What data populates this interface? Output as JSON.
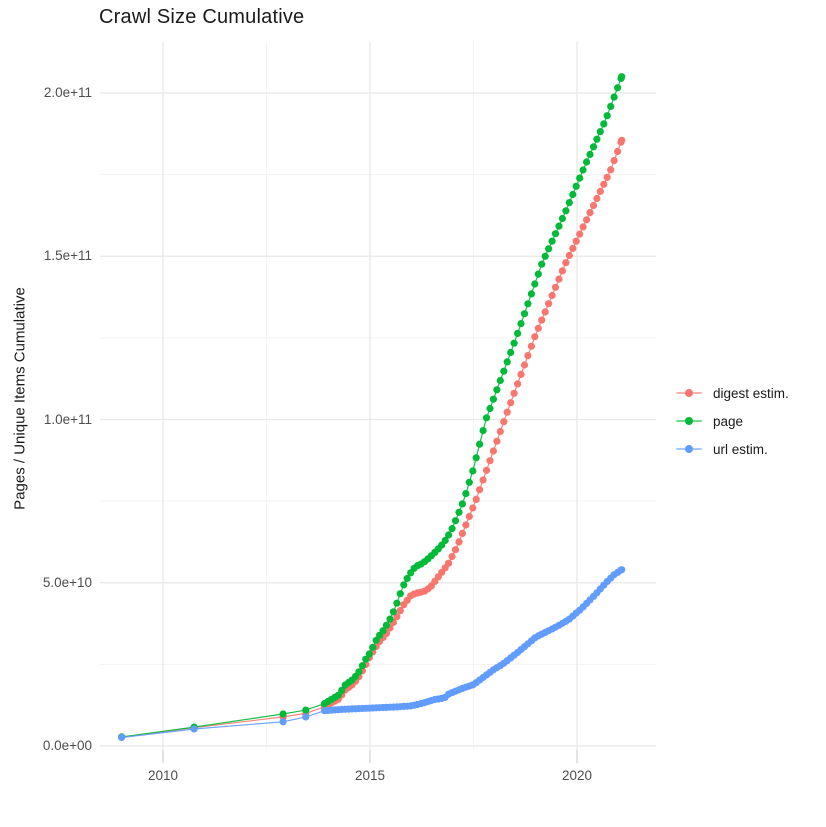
{
  "title": "Crawl Size Cumulative",
  "axes": {
    "y_title": "Pages / Unique Items Cumulative",
    "y_ticks": [
      {
        "label": "0.0e+00",
        "value": 0
      },
      {
        "label": "5.0e+10",
        "value": 50000000000.0
      },
      {
        "label": "1.0e+11",
        "value": 100000000000.0
      },
      {
        "label": "1.5e+11",
        "value": 150000000000.0
      },
      {
        "label": "2.0e+11",
        "value": 200000000000.0
      }
    ],
    "x_ticks": [
      {
        "label": "2010",
        "year": 2010
      },
      {
        "label": "2015",
        "year": 2015
      },
      {
        "label": "2020",
        "year": 2020
      }
    ],
    "y_minor_gridlines": [
      25000000000.0,
      75000000000.0,
      125000000000.0,
      175000000000.0
    ],
    "x_minor_gridlines": [
      2012.5,
      2017.5
    ]
  },
  "legend": {
    "position": "right",
    "items": [
      {
        "label": "digest estim.",
        "color": "#F8766D"
      },
      {
        "label": "page",
        "color": "#00BA38"
      },
      {
        "label": "url estim.",
        "color": "#619CFF"
      }
    ]
  },
  "style": {
    "grid_major_color": "#e8e8e8",
    "grid_minor_color": "#f3f3f3",
    "axis_tick_color": "#d9d9d9",
    "tick_text_color": "#4d4d4d",
    "title_color": "#1a1a1a",
    "background": "#ffffff"
  },
  "chart_data": {
    "type": "line",
    "title": "Crawl Size Cumulative",
    "xlabel": "",
    "ylabel": "Pages / Unique Items Cumulative",
    "x_unit": "year",
    "y_unit": "pages / unique items (cumulative)",
    "xlim": [
      2008.5,
      2021.9
    ],
    "ylim": [
      0,
      215000000000.0
    ],
    "grid": true,
    "legend_position": "right",
    "marker": "point",
    "point_cadence_years": 0.0833,
    "dense_points_from_year": 2013.9,
    "series": [
      {
        "name": "digest estim.",
        "color": "#F8766D",
        "points": [
          [
            2009.0,
            2700000000.0
          ],
          [
            2010.75,
            5600000000.0
          ],
          [
            2012.9,
            8900000000.0
          ],
          [
            2013.45,
            10000000000.0
          ],
          [
            2013.9,
            12000000000.0
          ],
          [
            2014.1,
            13400000000.0
          ],
          [
            2014.25,
            14400000000.0
          ],
          [
            2014.4,
            17200000000.0
          ],
          [
            2014.6,
            19000000000.0
          ],
          [
            2014.75,
            21500000000.0
          ],
          [
            2014.9,
            25000000000.0
          ],
          [
            2015.0,
            27500000000.0
          ],
          [
            2015.2,
            31500000000.0
          ],
          [
            2015.4,
            34500000000.0
          ],
          [
            2015.6,
            38500000000.0
          ],
          [
            2015.8,
            43000000000.0
          ],
          [
            2016.0,
            46300000000.0
          ],
          [
            2016.15,
            46900000000.0
          ],
          [
            2016.3,
            47300000000.0
          ],
          [
            2016.45,
            48500000000.0
          ],
          [
            2016.6,
            51000000000.0
          ],
          [
            2016.75,
            53500000000.0
          ],
          [
            2016.9,
            56000000000.0
          ],
          [
            2017.1,
            61000000000.0
          ],
          [
            2017.55,
            75000000000.0
          ],
          [
            2018.0,
            91000000000.0
          ],
          [
            2018.25,
            100000000000.0
          ],
          [
            2019.0,
            126000000000.0
          ],
          [
            2019.73,
            148000000000.0
          ],
          [
            2020.3,
            163000000000.0
          ],
          [
            2020.8,
            176000000000.0
          ],
          [
            2021.08,
            185500000000.0
          ]
        ]
      },
      {
        "name": "page",
        "color": "#00BA38",
        "points": [
          [
            2009.0,
            2800000000.0
          ],
          [
            2010.75,
            5800000000.0
          ],
          [
            2012.9,
            9800000000.0
          ],
          [
            2013.45,
            11000000000.0
          ],
          [
            2013.9,
            13000000000.0
          ],
          [
            2014.1,
            14500000000.0
          ],
          [
            2014.25,
            15700000000.0
          ],
          [
            2014.4,
            18700000000.0
          ],
          [
            2014.6,
            20500000000.0
          ],
          [
            2014.75,
            23000000000.0
          ],
          [
            2014.9,
            26600000000.0
          ],
          [
            2015.0,
            28500000000.0
          ],
          [
            2015.17,
            32900000000.0
          ],
          [
            2015.3,
            35000000000.0
          ],
          [
            2015.45,
            38000000000.0
          ],
          [
            2015.6,
            42000000000.0
          ],
          [
            2015.8,
            49000000000.0
          ],
          [
            2015.95,
            52500000000.0
          ],
          [
            2016.1,
            55000000000.0
          ],
          [
            2016.25,
            55800000000.0
          ],
          [
            2016.4,
            57300000000.0
          ],
          [
            2016.55,
            59100000000.0
          ],
          [
            2016.7,
            61000000000.0
          ],
          [
            2016.85,
            63500000000.0
          ],
          [
            2017.0,
            67000000000.0
          ],
          [
            2017.26,
            75000000000.0
          ],
          [
            2017.5,
            85000000000.0
          ],
          [
            2017.8,
            100000000000.0
          ],
          [
            2018.5,
            124000000000.0
          ],
          [
            2019.16,
            148000000000.0
          ],
          [
            2019.7,
            163000000000.0
          ],
          [
            2020.2,
            178000000000.0
          ],
          [
            2020.7,
            192000000000.0
          ],
          [
            2021.08,
            205000000000.0
          ]
        ]
      },
      {
        "name": "url estim.",
        "color": "#619CFF",
        "points": [
          [
            2009.0,
            2600000000.0
          ],
          [
            2010.75,
            5200000000.0
          ],
          [
            2012.9,
            7400000000.0
          ],
          [
            2013.45,
            8900000000.0
          ],
          [
            2013.9,
            10800000000.0
          ],
          [
            2014.3,
            11200000000.0
          ],
          [
            2015.0,
            11600000000.0
          ],
          [
            2015.7,
            12000000000.0
          ],
          [
            2016.0,
            12300000000.0
          ],
          [
            2016.3,
            13200000000.0
          ],
          [
            2016.55,
            14200000000.0
          ],
          [
            2016.8,
            14700000000.0
          ],
          [
            2016.88,
            15800000000.0
          ],
          [
            2017.2,
            17500000000.0
          ],
          [
            2017.5,
            18800000000.0
          ],
          [
            2018.0,
            23500000000.0
          ],
          [
            2018.2,
            25000000000.0
          ],
          [
            2018.6,
            29000000000.0
          ],
          [
            2019.0,
            33300000000.0
          ],
          [
            2019.5,
            36500000000.0
          ],
          [
            2019.8,
            38700000000.0
          ],
          [
            2020.1,
            42000000000.0
          ],
          [
            2020.45,
            46500000000.0
          ],
          [
            2020.7,
            50000000000.0
          ],
          [
            2020.9,
            52500000000.0
          ],
          [
            2021.08,
            54000000000.0
          ]
        ]
      }
    ]
  }
}
